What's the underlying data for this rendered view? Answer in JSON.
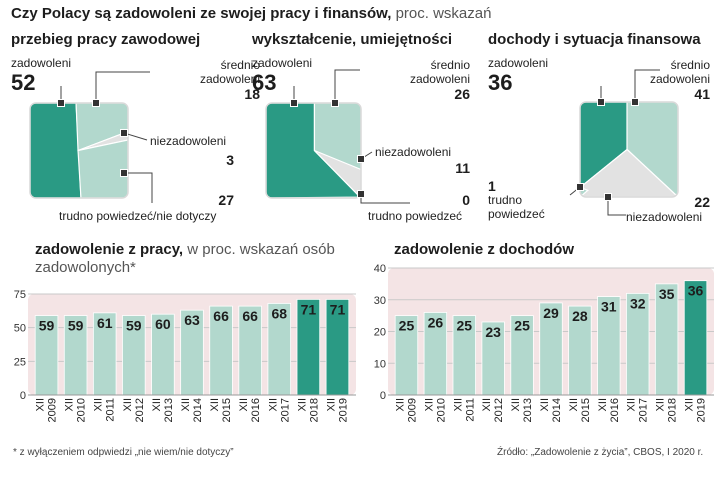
{
  "header": {
    "title_bold": "Czy Polacy są zadowoleni ze swojej pracy i finansów,",
    "title_light": "proc. wskazań"
  },
  "colors": {
    "dark": "#2a9a84",
    "light": "#b2d8cd",
    "grey": "#e2e2e2",
    "bar": "#b2d8cd",
    "bar_highlight": "#2a9a84",
    "band": "#f4e4e5"
  },
  "chart_data": [
    {
      "type": "pie",
      "title": "przebieg pracy zawodowej",
      "slices": [
        {
          "label": "zadowoleni",
          "value": 52
        },
        {
          "label": "średnio zadowoleni",
          "value": 18
        },
        {
          "label": "niezadowoleni",
          "value": 3
        },
        {
          "label": "trudno powiedzeć/nie dotyczy",
          "value": 27
        }
      ]
    },
    {
      "type": "pie",
      "title": "wykształcenie, umiejętności",
      "slices": [
        {
          "label": "zadowoleni",
          "value": 63
        },
        {
          "label": "średnio zadowoleni",
          "value": 26
        },
        {
          "label": "niezadowoleni",
          "value": 11
        },
        {
          "label": "trudno powiedzeć",
          "value": 0
        }
      ]
    },
    {
      "type": "pie",
      "title": "dochody i sytuacja finansowa",
      "slices": [
        {
          "label": "zadowoleni",
          "value": 36
        },
        {
          "label": "średnio zadowoleni",
          "value": 41
        },
        {
          "label": "niezadowoleni",
          "value": 22
        },
        {
          "label": "trudno powiedzeć",
          "value": 1
        }
      ]
    },
    {
      "type": "bar",
      "title": "zadowolenie z pracy,",
      "subtitle": "w proc. wskazań osób zadowolonych*",
      "categories": [
        "XII 2009",
        "XII 2010",
        "XII 2011",
        "XII 2012",
        "XII 2013",
        "XII 2014",
        "XII 2015",
        "XII 2016",
        "XII 2017",
        "XII 2018",
        "XII 2019"
      ],
      "values": [
        59,
        59,
        61,
        59,
        60,
        63,
        66,
        66,
        68,
        71,
        71
      ],
      "yticks": [
        0,
        25,
        50,
        75
      ],
      "ylim": [
        0,
        75
      ],
      "highlight": [
        9,
        10
      ]
    },
    {
      "type": "bar",
      "title": "zadowolenie z dochodów",
      "categories": [
        "XII 2009",
        "XII 2010",
        "XII 2011",
        "XII 2012",
        "XII 2013",
        "XII 2014",
        "XII 2015",
        "XII 2016",
        "XII 2017",
        "XII 2018",
        "XII 2019"
      ],
      "values": [
        25,
        26,
        25,
        23,
        25,
        29,
        28,
        31,
        32,
        35,
        36
      ],
      "yticks": [
        0,
        10,
        20,
        30,
        40
      ],
      "ylim": [
        0,
        40
      ],
      "highlight": [
        10
      ]
    }
  ],
  "labels": {
    "p1": {
      "sat": "zadowoleni",
      "sat_val": "52",
      "mid": "średnio\nzadowoleni",
      "mid_val": "18",
      "dis": "niezadowoleni",
      "dis_val": "3",
      "hard_val": "27",
      "hard": "trudno powiedzeć/nie dotyczy"
    },
    "p2": {
      "sat": "zadowoleni",
      "sat_val": "63",
      "mid": "średnio\nzadowoleni",
      "mid_val": "26",
      "dis": "niezadowoleni",
      "dis_val": "11",
      "hard_val": "0",
      "hard": "trudno powiedzeć"
    },
    "p3": {
      "sat": "zadowoleni",
      "sat_val": "36",
      "mid": "średnio\nzadowoleni",
      "mid_val": "41",
      "hard_val": "1",
      "hard": "trudno\npowiedzeć",
      "dis_val": "22",
      "dis": "niezadowoleni"
    }
  },
  "footer": {
    "note": "* z wyłączeniem odpwiedzi „nie wiem/nie dotyczy”",
    "source": "Źródło: „Zadowolenie z życia”, CBOS, I 2020 r."
  }
}
